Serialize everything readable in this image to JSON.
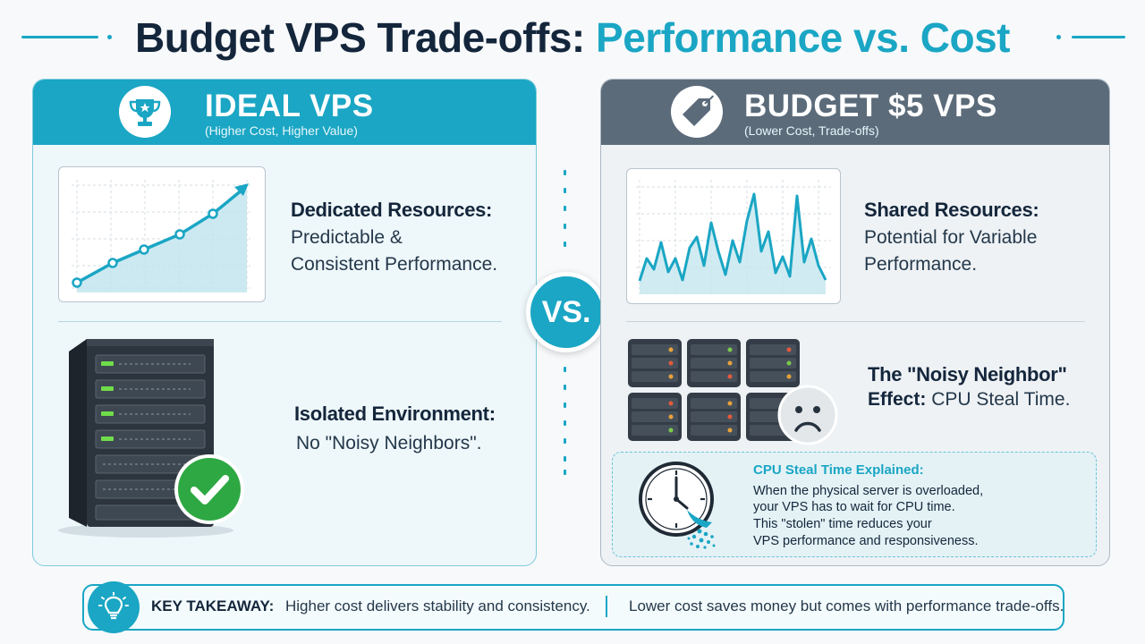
{
  "title": {
    "part1": "Budget VPS Trade-offs:",
    "part2": "Performance vs. Cost"
  },
  "colors": {
    "accent": "#1aa6c4",
    "slate": "#5b6b7a",
    "dark": "#14263b",
    "green": "#2ea843"
  },
  "left_panel": {
    "title": "IDEAL VPS",
    "subtitle": "(Higher Cost, Higher Value)",
    "icon": "trophy-icon",
    "feature1_title": "Dedicated Resources:",
    "feature1_desc_1": "Predictable &",
    "feature1_desc_2": "Consistent Performance.",
    "feature2_title": "Isolated Environment:",
    "feature2_desc": "No \"Noisy Neighbors\"."
  },
  "right_panel": {
    "title": "BUDGET $5 VPS",
    "subtitle": "(Lower Cost, Trade-offs)",
    "icon": "price-tag-icon",
    "feature1_title": "Shared Resources:",
    "feature1_desc_1": "Potential for Variable",
    "feature1_desc_2": "Performance.",
    "feature2_title": "The \"Noisy Neighbor\"",
    "feature2_desc_bold": "Effect:",
    "feature2_desc": "CPU Steal Time."
  },
  "vs_label": "VS.",
  "steal_box": {
    "title": "CPU Steal Time Explained:",
    "line1": "When the physical server is overloaded,",
    "line2": "your VPS has to wait for CPU time.",
    "line3": "This \"stolen\" time reduces your",
    "line4": "VPS performance and responsiveness."
  },
  "takeaway": {
    "label": "KEY TAKEAWAY:",
    "left": "Higher cost delivers stability and consistency.",
    "right": "Lower cost saves money but comes with performance trade-offs."
  }
}
